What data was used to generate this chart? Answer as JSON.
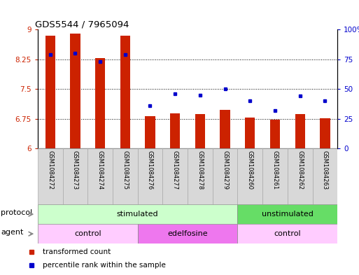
{
  "title": "GDS5544 / 7965094",
  "samples": [
    "GSM1084272",
    "GSM1084273",
    "GSM1084274",
    "GSM1084275",
    "GSM1084276",
    "GSM1084277",
    "GSM1084278",
    "GSM1084279",
    "GSM1084260",
    "GSM1084261",
    "GSM1084262",
    "GSM1084263"
  ],
  "transformed_counts": [
    8.85,
    8.9,
    8.28,
    8.85,
    6.82,
    6.88,
    6.87,
    6.97,
    6.78,
    6.72,
    6.87,
    6.77
  ],
  "percentile_ranks": [
    79,
    80,
    73,
    79,
    36,
    46,
    45,
    50,
    40,
    32,
    44,
    40
  ],
  "ylim_left": [
    6,
    9
  ],
  "ylim_right": [
    0,
    100
  ],
  "yticks_left": [
    6,
    6.75,
    7.5,
    8.25,
    9
  ],
  "yticks_right": [
    0,
    25,
    50,
    75,
    100
  ],
  "ytick_labels_left": [
    "6",
    "6.75",
    "7.5",
    "8.25",
    "9"
  ],
  "ytick_labels_right": [
    "0",
    "25",
    "50",
    "75",
    "100%"
  ],
  "bar_color": "#cc2200",
  "dot_color": "#0000cc",
  "protocol_groups": [
    {
      "label": "stimulated",
      "start": 0,
      "end": 7,
      "color": "#ccffcc"
    },
    {
      "label": "unstimulated",
      "start": 8,
      "end": 11,
      "color": "#66dd66"
    }
  ],
  "agent_groups": [
    {
      "label": "control",
      "start": 0,
      "end": 3,
      "color": "#ffccff"
    },
    {
      "label": "edelfosine",
      "start": 4,
      "end": 7,
      "color": "#ee77ee"
    },
    {
      "label": "control",
      "start": 8,
      "end": 11,
      "color": "#ffccff"
    }
  ],
  "protocol_label": "protocol",
  "agent_label": "agent",
  "legend_items": [
    {
      "label": "transformed count",
      "color": "#cc2200"
    },
    {
      "label": "percentile rank within the sample",
      "color": "#0000cc"
    }
  ],
  "left_tick_color": "#cc2200",
  "right_tick_color": "#0000cc",
  "sample_bg_color": "#d8d8d8",
  "bar_width": 0.4
}
